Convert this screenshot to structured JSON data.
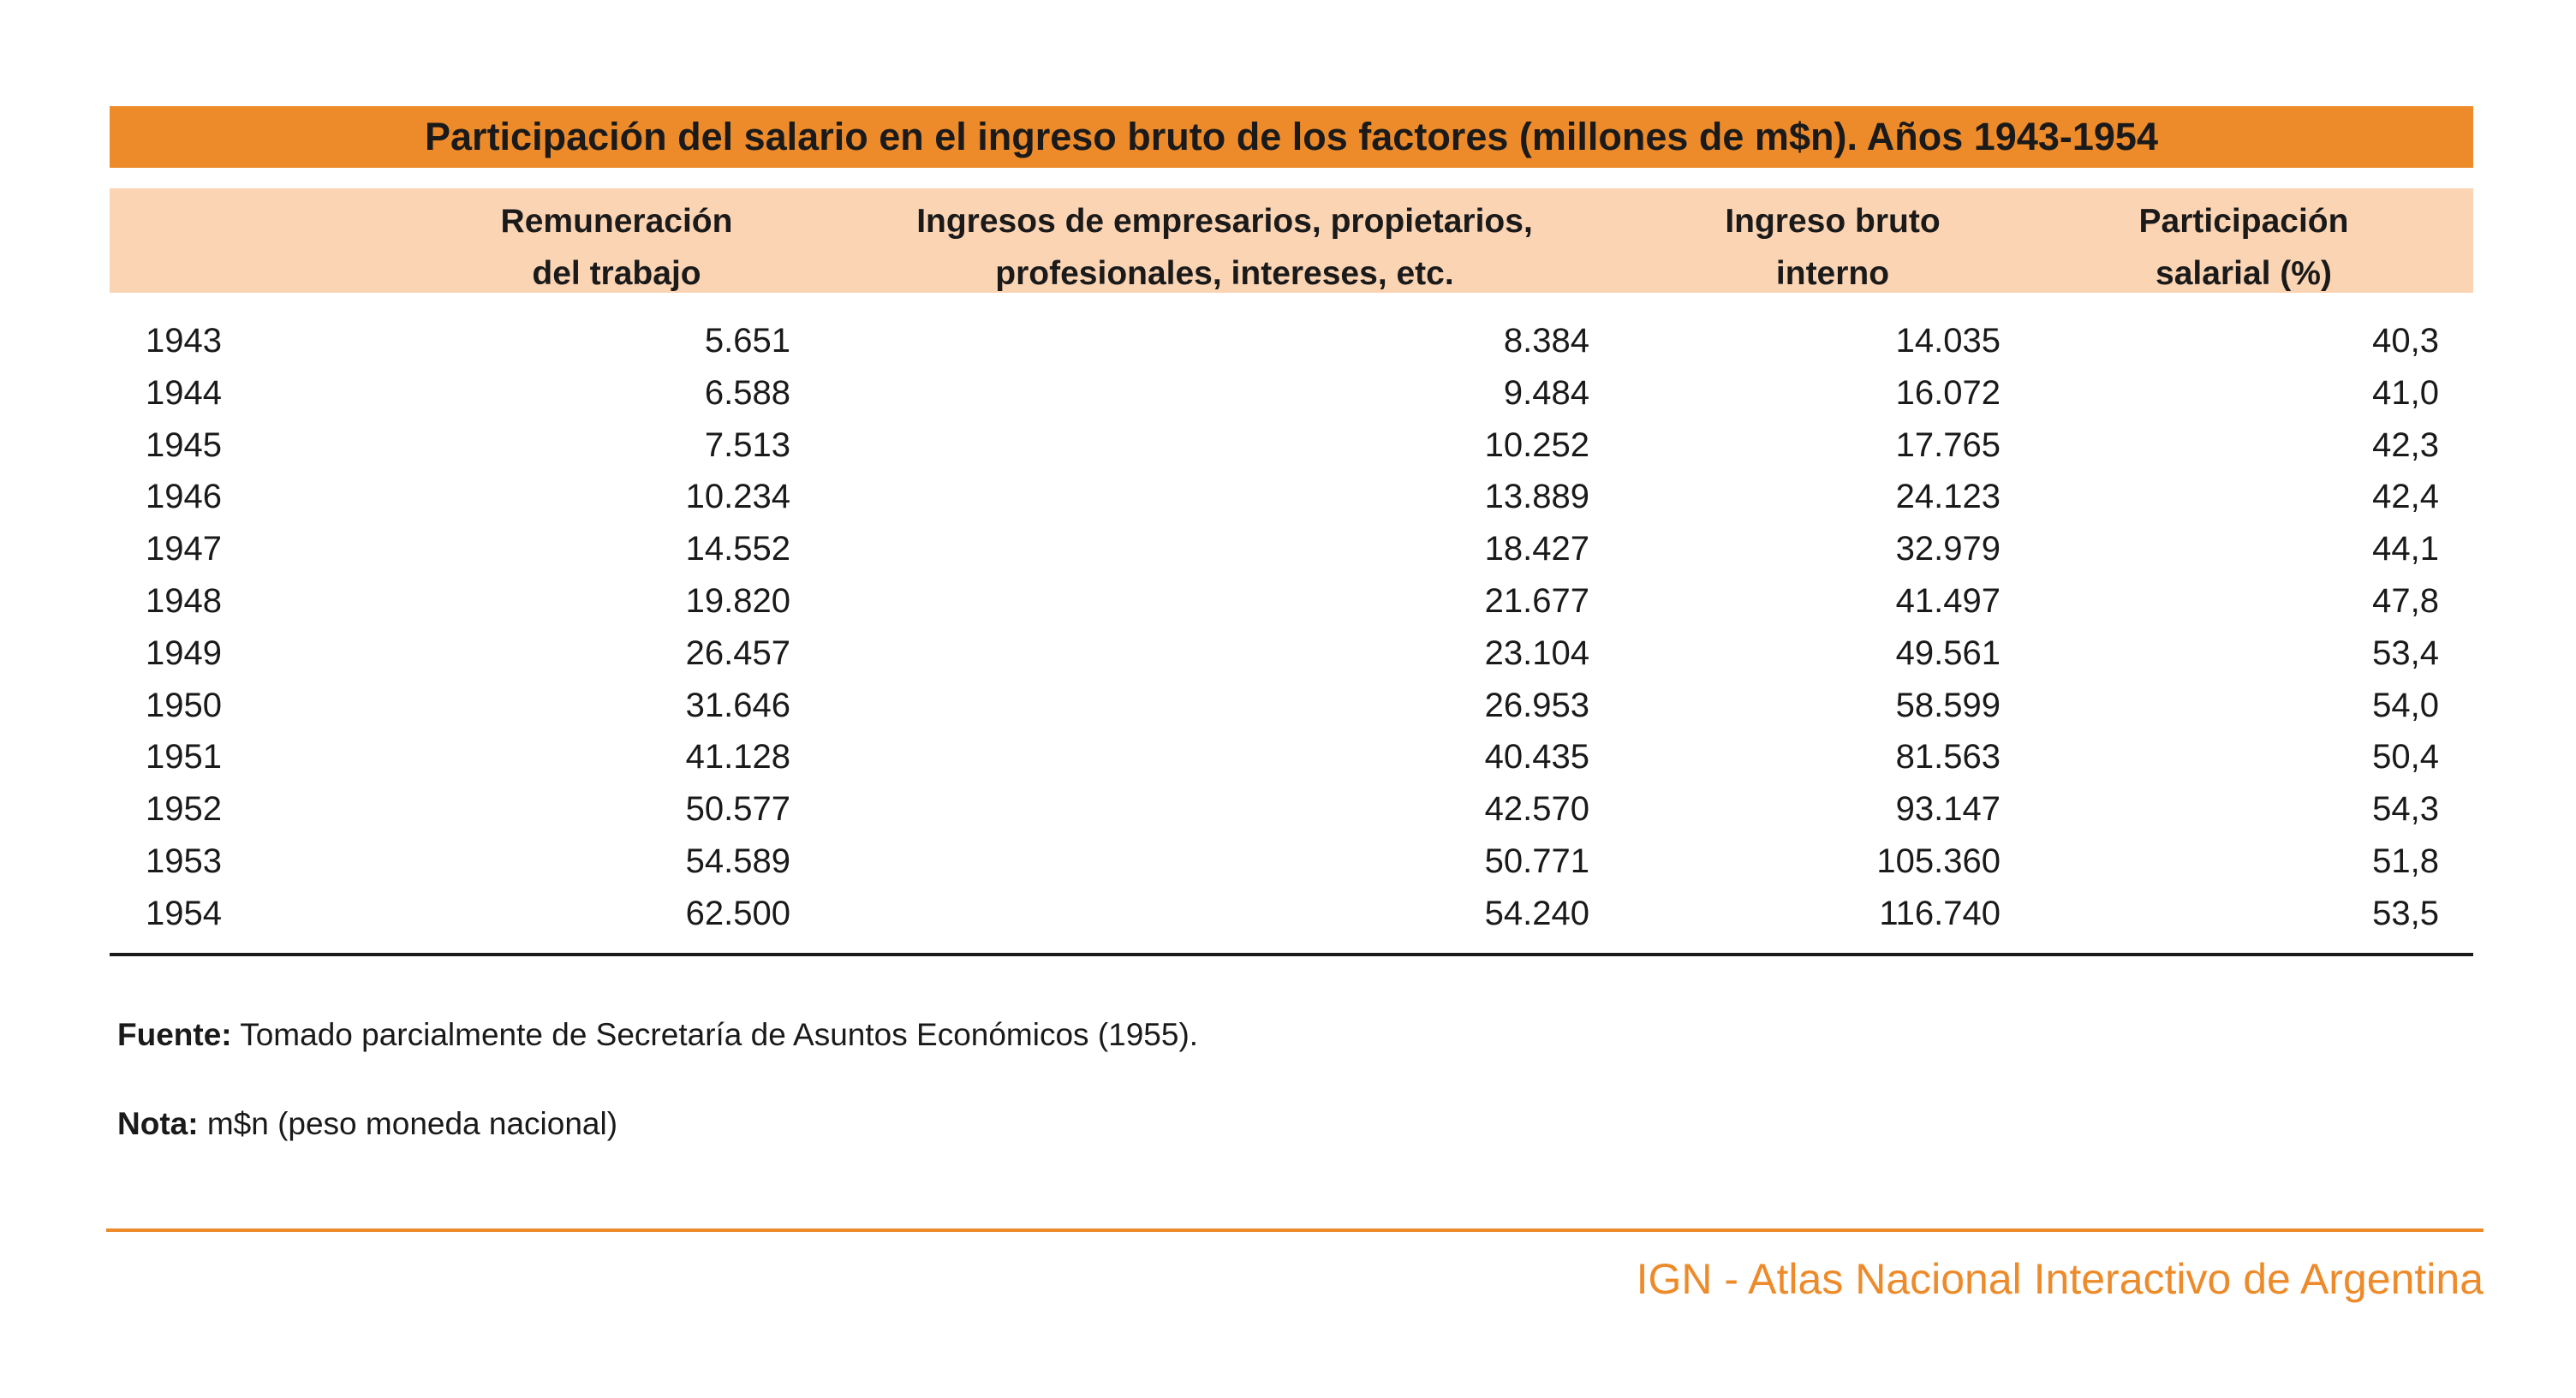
{
  "title": "Participación del salario en el ingreso bruto de los factores (millones de m$n). Años 1943-1954",
  "colors": {
    "accent": "#ed8b2b",
    "header_band": "#fbd4b4",
    "text": "#1a1a1a"
  },
  "table": {
    "headers": {
      "remuneracion": [
        "Remuneración",
        "del trabajo"
      ],
      "ingresos": [
        "Ingresos de empresarios, propietarios,",
        "profesionales, intereses, etc."
      ],
      "bruto": [
        "Ingreso bruto",
        "interno"
      ],
      "participacion": [
        "Participación",
        "salarial (%)"
      ]
    },
    "rows": [
      {
        "year": "1943",
        "remuneracion": "5.651",
        "ingresos": "8.384",
        "bruto": "14.035",
        "participacion": "40,3"
      },
      {
        "year": "1944",
        "remuneracion": "6.588",
        "ingresos": "9.484",
        "bruto": "16.072",
        "participacion": "41,0"
      },
      {
        "year": "1945",
        "remuneracion": "7.513",
        "ingresos": "10.252",
        "bruto": "17.765",
        "participacion": "42,3"
      },
      {
        "year": "1946",
        "remuneracion": "10.234",
        "ingresos": "13.889",
        "bruto": "24.123",
        "participacion": "42,4"
      },
      {
        "year": "1947",
        "remuneracion": "14.552",
        "ingresos": "18.427",
        "bruto": "32.979",
        "participacion": "44,1"
      },
      {
        "year": "1948",
        "remuneracion": "19.820",
        "ingresos": "21.677",
        "bruto": "41.497",
        "participacion": "47,8"
      },
      {
        "year": "1949",
        "remuneracion": "26.457",
        "ingresos": "23.104",
        "bruto": "49.561",
        "participacion": "53,4"
      },
      {
        "year": "1950",
        "remuneracion": "31.646",
        "ingresos": "26.953",
        "bruto": "58.599",
        "participacion": "54,0"
      },
      {
        "year": "1951",
        "remuneracion": "41.128",
        "ingresos": "40.435",
        "bruto": "81.563",
        "participacion": "50,4"
      },
      {
        "year": "1952",
        "remuneracion": "50.577",
        "ingresos": "42.570",
        "bruto": "93.147",
        "participacion": "54,3"
      },
      {
        "year": "1953",
        "remuneracion": "54.589",
        "ingresos": "50.771",
        "bruto": "105.360",
        "participacion": "51,8"
      },
      {
        "year": "1954",
        "remuneracion": "62.500",
        "ingresos": "54.240",
        "bruto": "116.740",
        "participacion": "53,5"
      }
    ]
  },
  "notes": {
    "fuente_label": "Fuente:",
    "fuente_text": " Tomado parcialmente de Secretaría de Asuntos Económicos (1955).",
    "nota_label": "Nota:",
    "nota_text": " m$n (peso moneda nacional)"
  },
  "footer": "IGN - Atlas Nacional Interactivo de Argentina"
}
